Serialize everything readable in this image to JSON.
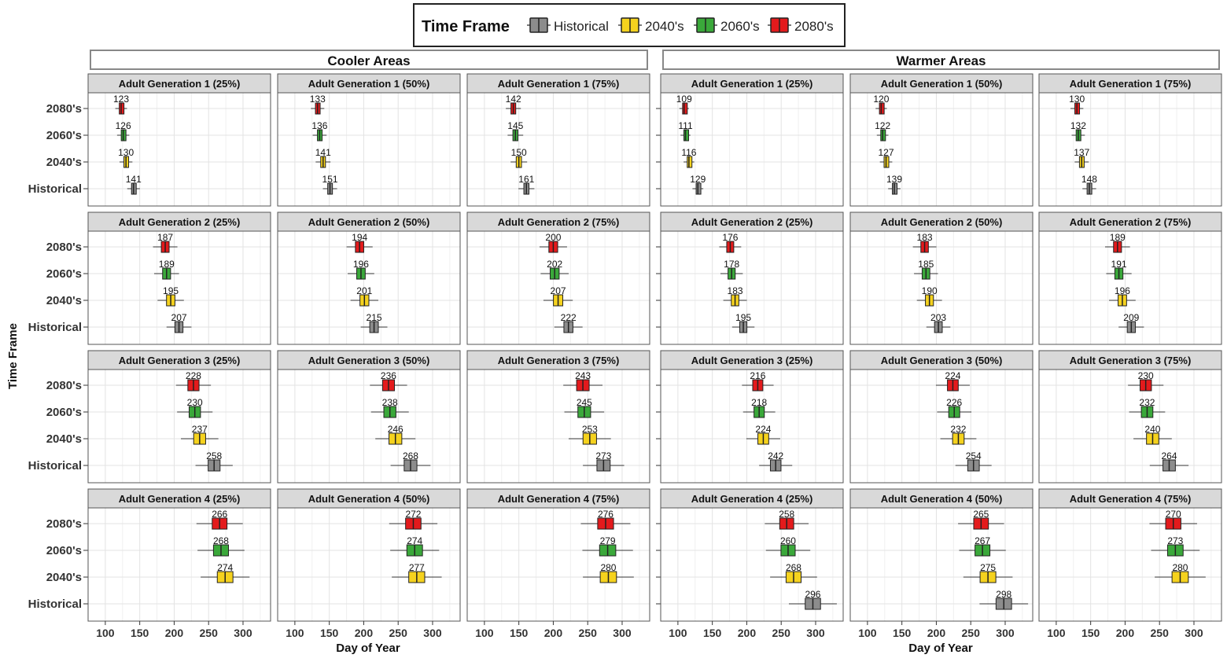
{
  "legend": {
    "title": "Time Frame",
    "items": [
      {
        "label": "Historical",
        "color": "#8c8c8c"
      },
      {
        "label": "2040's",
        "color": "#f5d21e"
      },
      {
        "label": "2060's",
        "color": "#3aa83a"
      },
      {
        "label": "2080's",
        "color": "#e31a1c"
      }
    ]
  },
  "y_axis_title": "Time Frame",
  "x_axis_title": "Day of Year",
  "colors": {
    "Historical": "#8c8c8c",
    "2040's": "#f5d21e",
    "2060's": "#3aa83a",
    "2080's": "#e31a1c"
  },
  "chart_data": {
    "type": "boxplot",
    "xlabel": "Day of Year",
    "ylabel": "Time Frame",
    "xlim": [
      75,
      340
    ],
    "x_ticks": [
      "100",
      "150",
      "200",
      "250",
      "300",
      "350"
    ],
    "categories": [
      "2080's",
      "2060's",
      "2040's",
      "Historical"
    ],
    "column_groups": [
      {
        "title": "Cooler Areas",
        "panels": [
          {
            "title": "Adult Generation 1 (25%)",
            "medians": {
              "2080's": 123,
              "2060's": 126,
              "2040's": 130,
              "Historical": 141
            }
          },
          {
            "title": "Adult Generation 1 (50%)",
            "medians": {
              "2080's": 133,
              "2060's": 136,
              "2040's": 141,
              "Historical": 151
            }
          },
          {
            "title": "Adult Generation 1 (75%)",
            "medians": {
              "2080's": 142,
              "2060's": 145,
              "2040's": 150,
              "Historical": 161
            }
          },
          {
            "title": "Adult Generation 2 (25%)",
            "medians": {
              "2080's": 187,
              "2060's": 189,
              "2040's": 195,
              "Historical": 207
            }
          },
          {
            "title": "Adult Generation 2 (50%)",
            "medians": {
              "2080's": 194,
              "2060's": 196,
              "2040's": 201,
              "Historical": 215
            }
          },
          {
            "title": "Adult Generation 2 (75%)",
            "medians": {
              "2080's": 200,
              "2060's": 202,
              "2040's": 207,
              "Historical": 222
            }
          },
          {
            "title": "Adult Generation 3 (25%)",
            "medians": {
              "2080's": 228,
              "2060's": 230,
              "2040's": 237,
              "Historical": 258
            }
          },
          {
            "title": "Adult Generation 3 (50%)",
            "medians": {
              "2080's": 236,
              "2060's": 238,
              "2040's": 246,
              "Historical": 268
            }
          },
          {
            "title": "Adult Generation 3 (75%)",
            "medians": {
              "2080's": 243,
              "2060's": 245,
              "2040's": 253,
              "Historical": 273
            }
          },
          {
            "title": "Adult Generation 4 (25%)",
            "medians": {
              "2080's": 266,
              "2060's": 268,
              "2040's": 274
            }
          },
          {
            "title": "Adult Generation 4 (50%)",
            "medians": {
              "2080's": 272,
              "2060's": 274,
              "2040's": 277
            }
          },
          {
            "title": "Adult Generation 4 (75%)",
            "medians": {
              "2080's": 276,
              "2060's": 279,
              "2040's": 280
            }
          }
        ]
      },
      {
        "title": "Warmer Areas",
        "panels": [
          {
            "title": "Adult Generation 1 (25%)",
            "medians": {
              "2080's": 109,
              "2060's": 111,
              "2040's": 116,
              "Historical": 129
            }
          },
          {
            "title": "Adult Generation 1 (50%)",
            "medians": {
              "2080's": 120,
              "2060's": 122,
              "2040's": 127,
              "Historical": 139
            }
          },
          {
            "title": "Adult Generation 1 (75%)",
            "medians": {
              "2080's": 130,
              "2060's": 132,
              "2040's": 137,
              "Historical": 148
            }
          },
          {
            "title": "Adult Generation 2 (25%)",
            "medians": {
              "2080's": 176,
              "2060's": 178,
              "2040's": 183,
              "Historical": 195
            }
          },
          {
            "title": "Adult Generation 2 (50%)",
            "medians": {
              "2080's": 183,
              "2060's": 185,
              "2040's": 190,
              "Historical": 203
            }
          },
          {
            "title": "Adult Generation 2 (75%)",
            "medians": {
              "2080's": 189,
              "2060's": 191,
              "2040's": 196,
              "Historical": 209
            }
          },
          {
            "title": "Adult Generation 3 (25%)",
            "medians": {
              "2080's": 216,
              "2060's": 218,
              "2040's": 224,
              "Historical": 242
            }
          },
          {
            "title": "Adult Generation 3 (50%)",
            "medians": {
              "2080's": 224,
              "2060's": 226,
              "2040's": 232,
              "Historical": 254
            }
          },
          {
            "title": "Adult Generation 3 (75%)",
            "medians": {
              "2080's": 230,
              "2060's": 232,
              "2040's": 240,
              "Historical": 264
            }
          },
          {
            "title": "Adult Generation 4 (25%)",
            "medians": {
              "2080's": 258,
              "2060's": 260,
              "2040's": 268,
              "Historical": 296
            }
          },
          {
            "title": "Adult Generation 4 (50%)",
            "medians": {
              "2080's": 265,
              "2060's": 267,
              "2040's": 275,
              "Historical": 298
            }
          },
          {
            "title": "Adult Generation 4 (75%)",
            "medians": {
              "2080's": 270,
              "2060's": 273,
              "2040's": 280
            }
          }
        ]
      }
    ]
  }
}
